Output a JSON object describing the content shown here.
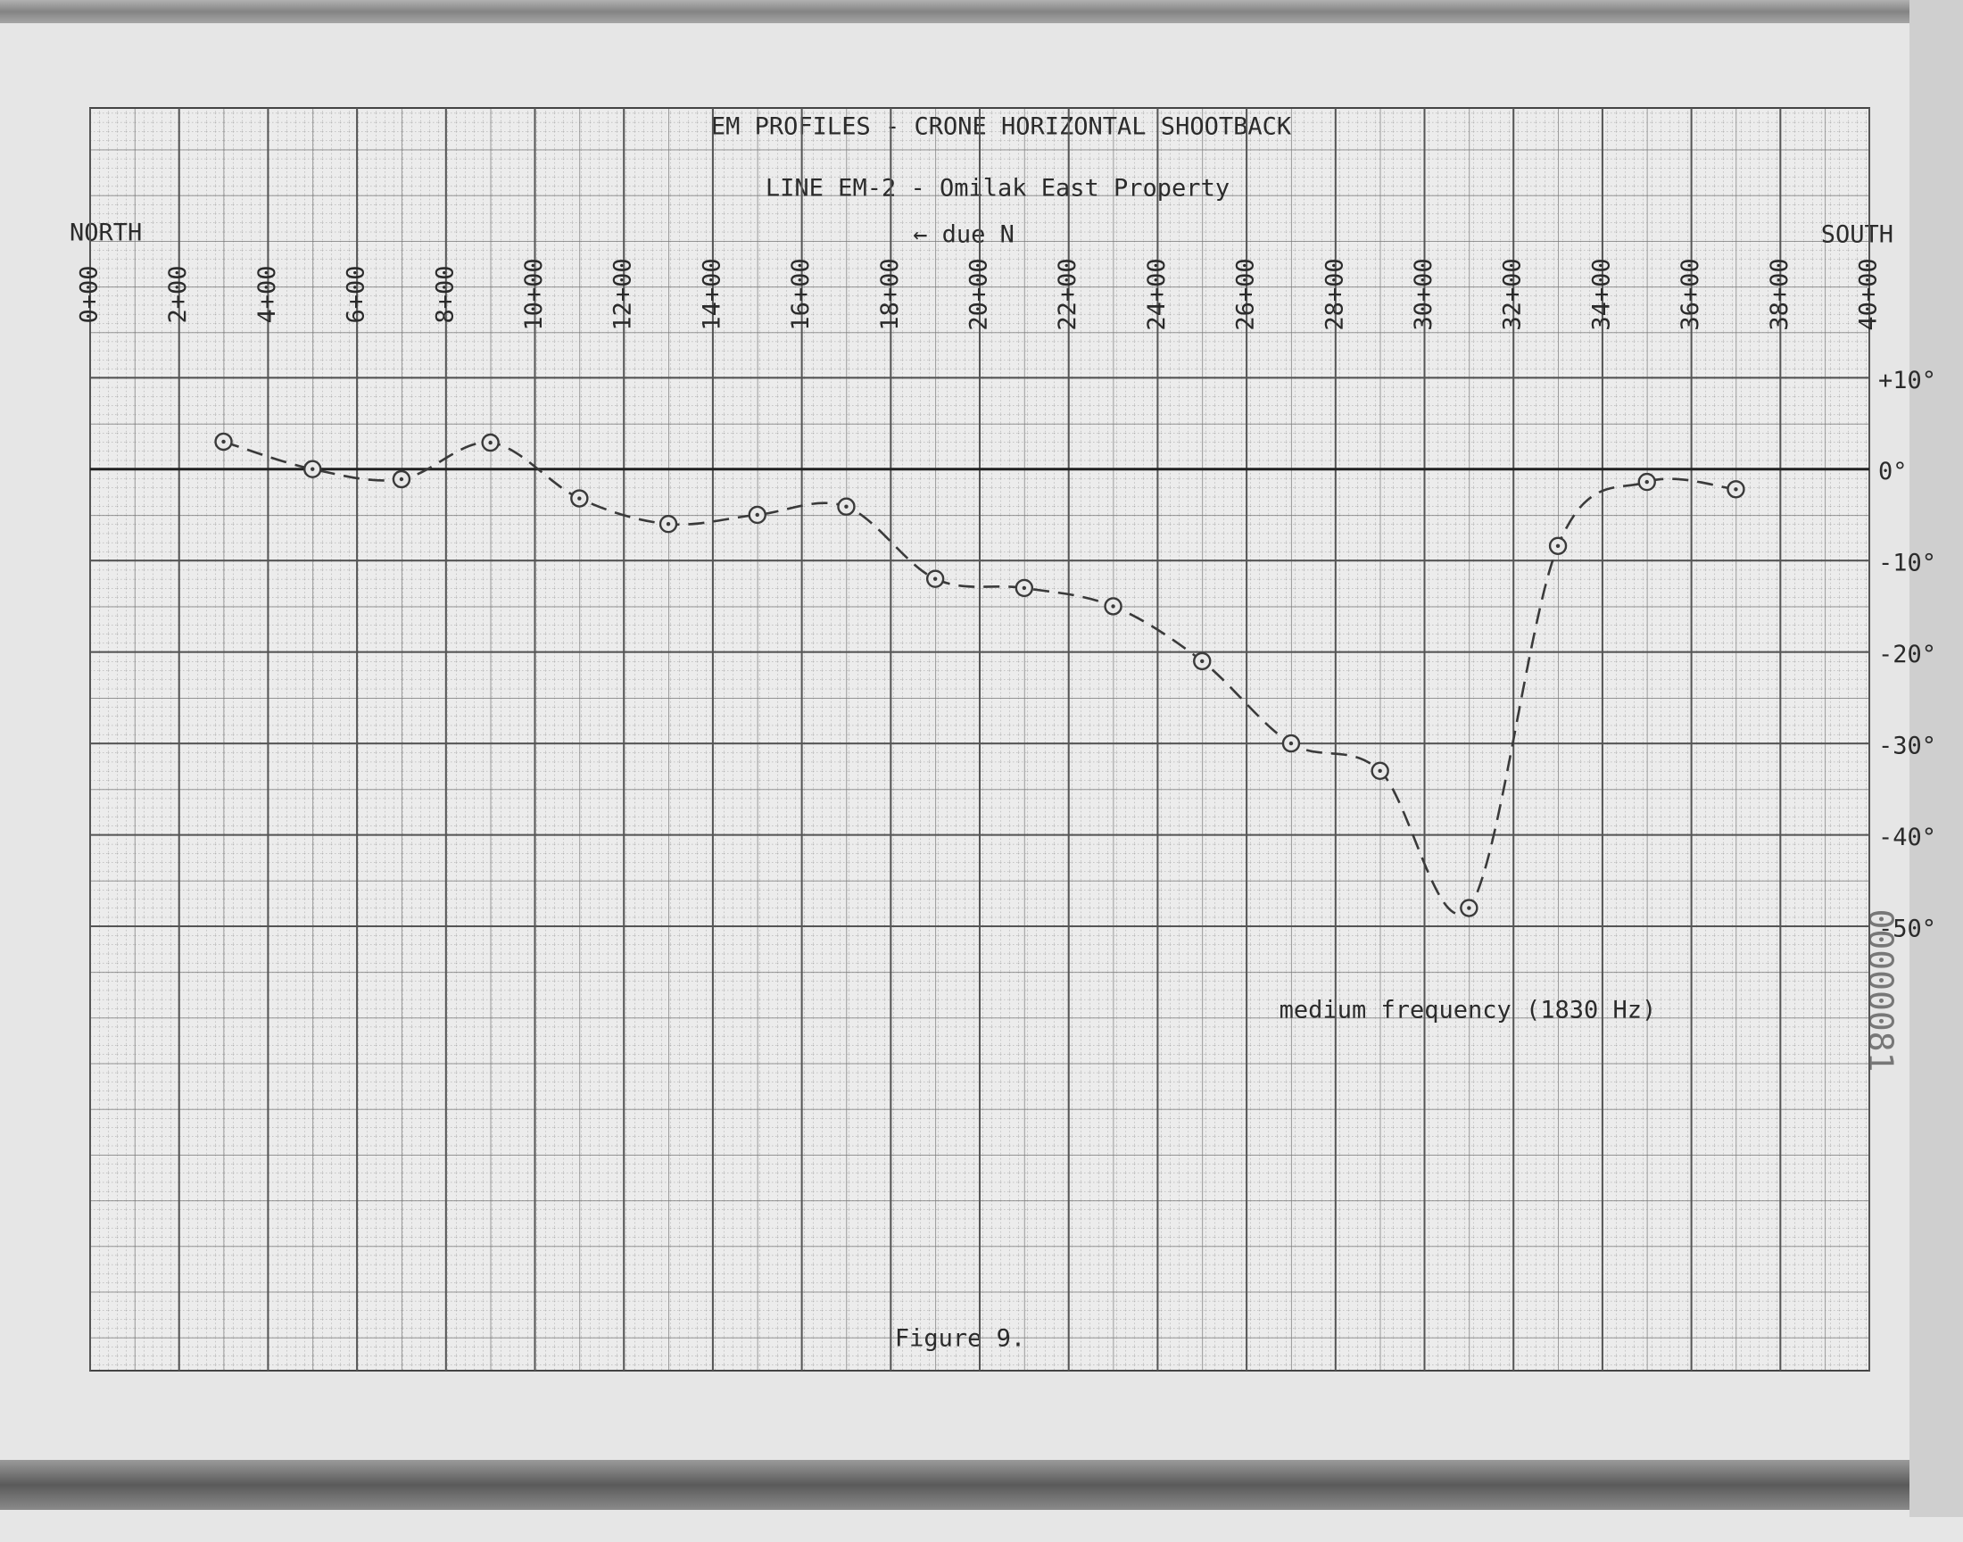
{
  "chart_data": {
    "type": "line",
    "title": "EM PROFILES - CRONE HORIZONTAL SHOOTBACK",
    "subtitle": "LINE EM-2 - Omilak East Property",
    "north_label": "NORTH",
    "south_label": "SOUTH",
    "direction_note": "← due N",
    "annotation": "medium frequency (1830 Hz)",
    "caption": "Figure 9.",
    "stamp": "00000081",
    "x": [
      3,
      5,
      7,
      9,
      11,
      13,
      15,
      17,
      19,
      21,
      23,
      25,
      27,
      29,
      31,
      33,
      35,
      37
    ],
    "values": [
      3,
      0,
      -1.1,
      2.9,
      -3.2,
      -6,
      -5,
      -4.1,
      -12,
      -13,
      -15,
      -21,
      -30,
      -33,
      -48,
      -8.4,
      -1.4,
      -2.2
    ],
    "color": "#3a3a3a",
    "line_style": "dashed",
    "marker": "circle",
    "xlim": [
      0,
      40
    ],
    "xticks": [
      {
        "value": 0,
        "label": "0+00"
      },
      {
        "value": 2,
        "label": "2+00"
      },
      {
        "value": 4,
        "label": "4+00"
      },
      {
        "value": 6,
        "label": "6+00"
      },
      {
        "value": 8,
        "label": "8+00"
      },
      {
        "value": 10,
        "label": "10+00"
      },
      {
        "value": 12,
        "label": "12+00"
      },
      {
        "value": 14,
        "label": "14+00"
      },
      {
        "value": 16,
        "label": "16+00"
      },
      {
        "value": 18,
        "label": "18+00"
      },
      {
        "value": 20,
        "label": "20+00"
      },
      {
        "value": 22,
        "label": "22+00"
      },
      {
        "value": 24,
        "label": "24+00"
      },
      {
        "value": 26,
        "label": "26+00"
      },
      {
        "value": 28,
        "label": "28+00"
      },
      {
        "value": 30,
        "label": "30+00"
      },
      {
        "value": 32,
        "label": "32+00"
      },
      {
        "value": 34,
        "label": "34+00"
      },
      {
        "value": 36,
        "label": "36+00"
      },
      {
        "value": 38,
        "label": "38+00"
      },
      {
        "value": 40,
        "label": "40+00"
      }
    ],
    "ylim": [
      -98.6,
      39.5
    ],
    "yticks": [
      {
        "value": 10,
        "label": "+10°"
      },
      {
        "value": 0,
        "label": "0°"
      },
      {
        "value": -10,
        "label": "-10°"
      },
      {
        "value": -20,
        "label": "-20°"
      },
      {
        "value": -30,
        "label": "-30°"
      },
      {
        "value": -40,
        "label": "-40°"
      },
      {
        "value": -50,
        "label": "-50°"
      }
    ],
    "grid": true
  }
}
